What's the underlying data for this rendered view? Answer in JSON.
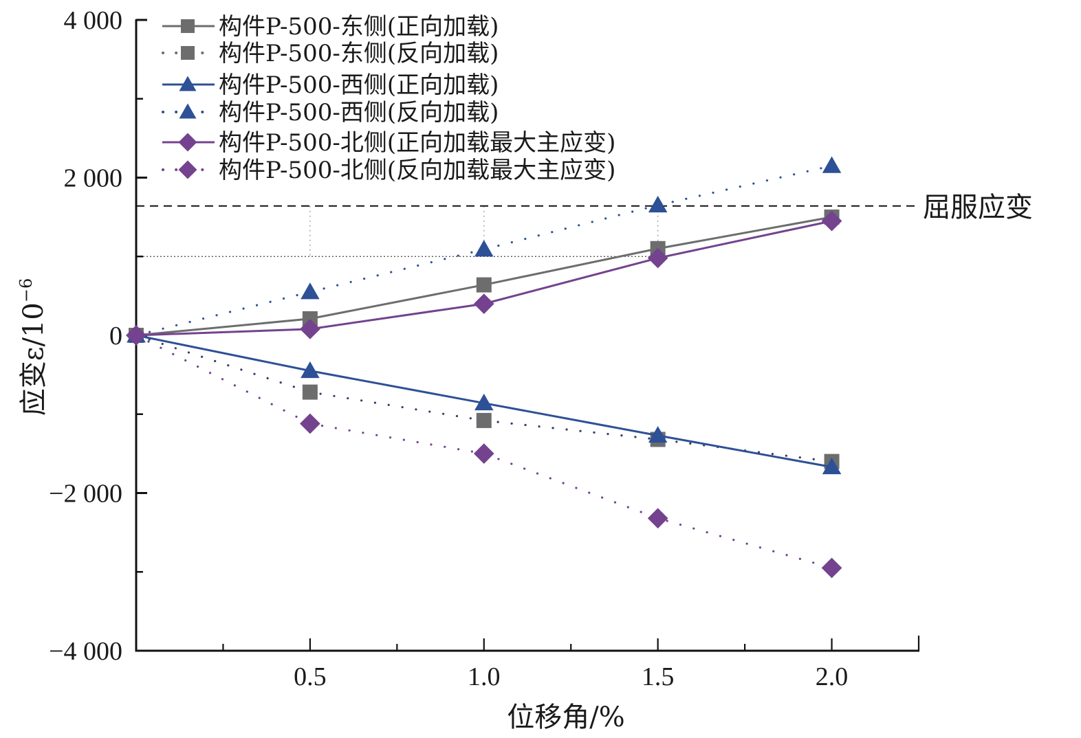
{
  "chart_data": {
    "type": "line",
    "title": "",
    "xlabel": "位移角/%",
    "ylabel": "应变ε/10",
    "ylabel_exponent": "−6",
    "xlim": [
      0,
      2.25
    ],
    "ylim": [
      -4000,
      4000
    ],
    "x_ticks": [
      0.5,
      1.0,
      1.5,
      2.0
    ],
    "x_tick_labels": [
      "0.5",
      "1.0",
      "1.5",
      "2.0"
    ],
    "x_minor_ticks": [
      0.25,
      0.75,
      1.25,
      1.75,
      2.25
    ],
    "y_ticks": [
      4000,
      2000,
      0,
      -2000,
      -4000
    ],
    "y_tick_labels": [
      "4 000",
      "2 000",
      "0",
      "−2 000",
      "−4 000"
    ],
    "y_minor_ticks": [
      3000,
      1000,
      -1000,
      -3000
    ],
    "grid": false,
    "legend_position": "top-left",
    "x": [
      0,
      0.5,
      1.0,
      1.5,
      2.0
    ],
    "series": [
      {
        "name": "构件P-500-东侧(正向加载)",
        "values": [
          0,
          210,
          640,
          1100,
          1500
        ],
        "color": "#6d6d6d",
        "marker": "square",
        "line": "solid"
      },
      {
        "name": "构件P-500-东侧(反向加载)",
        "values": [
          0,
          -720,
          -1080,
          -1320,
          -1600
        ],
        "color": "#6d6d6d",
        "marker": "square",
        "line": "dotted"
      },
      {
        "name": "构件P-500-西侧(正向加载)",
        "values": [
          0,
          -450,
          -860,
          -1270,
          -1670
        ],
        "color": "#2d5096",
        "marker": "triangle",
        "line": "solid"
      },
      {
        "name": "构件P-500-西侧(反向加载)",
        "values": [
          0,
          550,
          1090,
          1650,
          2150
        ],
        "color": "#2d5096",
        "marker": "triangle",
        "line": "dotted"
      },
      {
        "name": "构件P-500-北侧(正向加载最大主应变)",
        "values": [
          0,
          80,
          400,
          980,
          1450
        ],
        "color": "#74428e",
        "marker": "diamond",
        "line": "solid"
      },
      {
        "name": "构件P-500-北侧(反向加载最大主应变)",
        "values": [
          0,
          -1120,
          -1500,
          -2320,
          -2950
        ],
        "color": "#74428e",
        "marker": "diamond",
        "line": "dotted"
      }
    ],
    "reference_lines": [
      {
        "type": "horizontal",
        "value": 1640,
        "label": "屈服应变",
        "style": "dashed",
        "color": "#111111"
      },
      {
        "type": "horizontal",
        "value": 1000,
        "x_end": 1.5,
        "style": "dotted",
        "color": "#444444"
      }
    ],
    "guide_lines": [
      {
        "type": "vertical",
        "x": 0.5,
        "from": 1000,
        "to": 1640
      },
      {
        "type": "vertical",
        "x": 1.0,
        "from": 1000,
        "to": 1640
      },
      {
        "type": "vertical",
        "x": 1.5,
        "from": 1000,
        "to": 1640
      }
    ]
  }
}
